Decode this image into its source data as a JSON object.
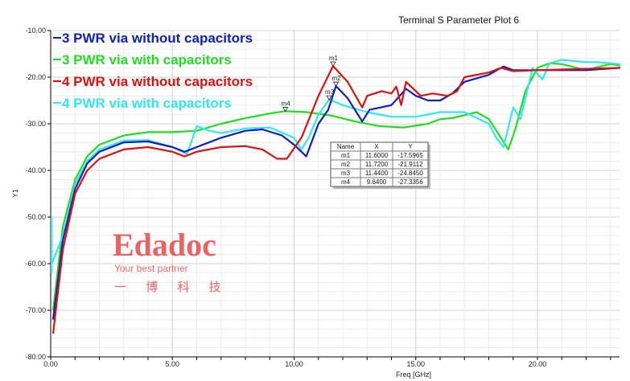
{
  "chart_data": {
    "type": "line",
    "title": "Terminal S Parameter Plot 6",
    "xlabel": "Freq [GHz]",
    "ylabel": "Y1",
    "xlim": [
      0,
      23.4
    ],
    "ylim": [
      -80,
      -10
    ],
    "xticks": [
      "0.00",
      "5.00",
      "10.00",
      "15.00",
      "20.00"
    ],
    "yticks": [
      "-10.00",
      "-20.00",
      "-30.00",
      "-40.00",
      "-50.00",
      "-60.00",
      "-70.00",
      "-80.00"
    ],
    "grid": true,
    "legend_position": "top-left",
    "series": [
      {
        "name": "3 PWR via without capacitors",
        "color": "#1020c0",
        "x": [
          0.1,
          0.5,
          1,
          1.5,
          2,
          3,
          4,
          5,
          5.5,
          6,
          7,
          8,
          8.7,
          9.5,
          10,
          10.5,
          11,
          11.4,
          11.72,
          12.2,
          12.8,
          13.1,
          14,
          14.6,
          15,
          15.5,
          16,
          16.5,
          17,
          18,
          18.6,
          19,
          20,
          22,
          23.4
        ],
        "y": [
          -72,
          -55,
          -44,
          -38.5,
          -36,
          -34,
          -33.8,
          -35,
          -36,
          -35,
          -33,
          -31.5,
          -31.2,
          -32.5,
          -34.5,
          -37,
          -30,
          -27,
          -21.9,
          -24.5,
          -29.5,
          -27,
          -26,
          -22.5,
          -24,
          -25,
          -25,
          -23.5,
          -21,
          -19.5,
          -17.7,
          -18.5,
          -18.5,
          -18.5,
          -18
        ]
      },
      {
        "name": "3 PWR via with capacitors",
        "color": "#22dd22",
        "x": [
          0.1,
          0.5,
          1,
          1.5,
          2,
          3,
          4,
          5,
          6,
          7,
          8,
          9,
          9.64,
          10.5,
          11.5,
          12.5,
          13.5,
          14.5,
          15.5,
          16,
          16.5,
          17.5,
          18,
          18.5,
          18.8,
          19.1,
          19.5,
          20,
          20.5,
          21,
          22,
          22.5,
          23,
          23.4
        ],
        "y": [
          -70,
          -52,
          -42,
          -37,
          -34.5,
          -32.5,
          -31.8,
          -31.8,
          -31.5,
          -30,
          -28.8,
          -27.8,
          -27.3,
          -27.5,
          -28.2,
          -29.5,
          -30.5,
          -30.8,
          -30,
          -29,
          -28.8,
          -27.5,
          -29,
          -33,
          -35.5,
          -31,
          -23,
          -18,
          -17,
          -17.2,
          -18.5,
          -17.8,
          -17.2,
          -17.5
        ]
      },
      {
        "name": "4 PWR via without capacitors",
        "color": "#e01010",
        "x": [
          0.1,
          0.5,
          1,
          1.5,
          2,
          3,
          4,
          5,
          5.5,
          6,
          7,
          8,
          8.7,
          9.3,
          9.7,
          10.3,
          11,
          11.6,
          12.2,
          12.8,
          13,
          13.6,
          14,
          14.2,
          14.4,
          14.6,
          15.2,
          15.7,
          16.3,
          16.7,
          17,
          18,
          18.5,
          19,
          20,
          23.4
        ],
        "y": [
          -75,
          -57,
          -45,
          -40,
          -37.5,
          -35.5,
          -35,
          -36,
          -37,
          -36,
          -35,
          -34.8,
          -35.5,
          -37.5,
          -37.5,
          -33,
          -24,
          -17.6,
          -21,
          -26.5,
          -24,
          -23,
          -23.5,
          -22,
          -26,
          -21,
          -24,
          -23.5,
          -24,
          -23,
          -20,
          -19,
          -18,
          -18.7,
          -18.5,
          -18
        ]
      },
      {
        "name": "4 PWR via with capacitors",
        "color": "#33e6f0",
        "x": [
          0.05,
          0.5,
          1,
          1.5,
          2,
          3,
          4,
          5,
          5.6,
          6,
          6.5,
          7,
          8,
          9,
          10,
          10.3,
          10.6,
          11,
          11.44,
          12,
          13,
          14,
          15,
          16,
          17,
          18,
          18.3,
          18.6,
          19,
          19.3,
          19.8,
          20.2,
          20.5,
          21,
          22,
          22.5,
          23.4
        ],
        "y": [
          -60,
          -54,
          -43,
          -38,
          -35.5,
          -33.6,
          -33.5,
          -35,
          -36.5,
          -30.5,
          -31.5,
          -32,
          -31,
          -30.8,
          -33,
          -35.5,
          -33,
          -28,
          -24.8,
          -26,
          -27.5,
          -28.5,
          -28.5,
          -27.5,
          -27.5,
          -30,
          -33,
          -35,
          -26.5,
          -29,
          -18,
          -20.5,
          -17,
          -16.3,
          -16.8,
          -16.8,
          -17.2
        ]
      }
    ],
    "markers": {
      "headers": [
        "Name",
        "X",
        "Y"
      ],
      "rows": [
        {
          "name": "m1",
          "x": "11.6000",
          "y": "-17.5965",
          "xv": 11.6,
          "yv": -17.5965
        },
        {
          "name": "m2",
          "x": "11.7200",
          "y": "-21.9112",
          "xv": 11.72,
          "yv": -21.9112
        },
        {
          "name": "m3",
          "x": "11.4400",
          "y": "-24.8450",
          "xv": 11.44,
          "yv": -24.845
        },
        {
          "name": "m4",
          "x": "9.6400",
          "y": "-27.3356",
          "xv": 9.64,
          "yv": -27.3356
        }
      ]
    }
  },
  "watermark": {
    "text": "Edadoc",
    "sub": "Your best partner",
    "cn": "一 博 科 技",
    "color": "#e83030"
  }
}
